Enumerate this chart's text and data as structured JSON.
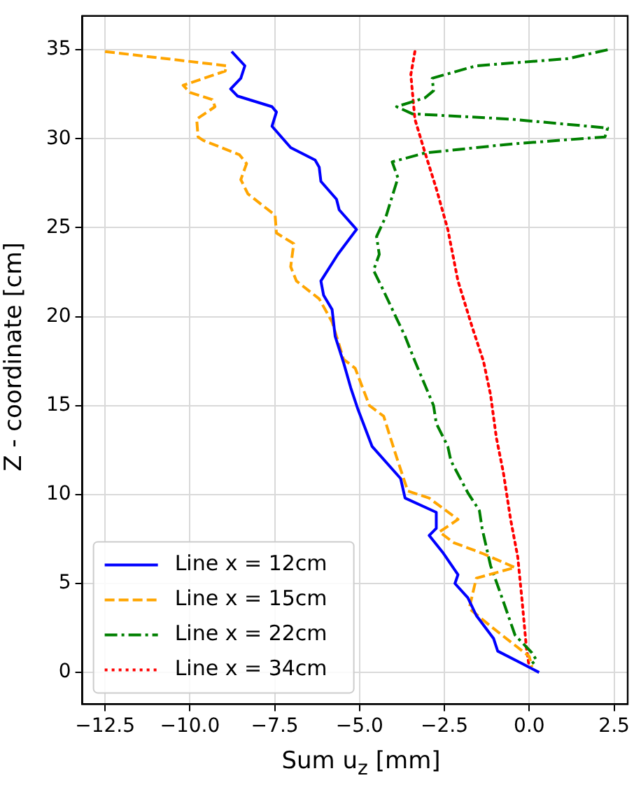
{
  "chart_data": {
    "type": "line",
    "xlabel": "Sum u$_{z}$ [mm]",
    "ylabel": "Z - coordinate [cm]",
    "xlim": [
      -13.17,
      2.9
    ],
    "ylim": [
      -1.78,
      36.9
    ],
    "xticks": [
      {
        "value": -12.5,
        "label": "−12.5"
      },
      {
        "value": -10,
        "label": "−10.0"
      },
      {
        "value": -7.5,
        "label": "−7.5"
      },
      {
        "value": -5,
        "label": "−5.0"
      },
      {
        "value": -2.5,
        "label": "−2.5"
      },
      {
        "value": 0,
        "label": "0.0"
      },
      {
        "value": 2.5,
        "label": "2.5"
      }
    ],
    "yticks": [
      0,
      5,
      10,
      15,
      20,
      25,
      30,
      35
    ],
    "grid": true,
    "legend": "bottom left",
    "marker": "none",
    "series": [
      {
        "name": "Line x = 12cm",
        "color": "#0000ff",
        "line_style": "solid",
        "x": [
          -8.77,
          -8.38,
          -8.5,
          -8.8,
          -8.6,
          -7.58,
          -7.45,
          -7.58,
          -7.03,
          -6.31,
          -6.19,
          -6.14,
          -5.68,
          -5.6,
          -5.09,
          -5.64,
          -6.14,
          -6.06,
          -5.81,
          -5.72,
          -5.47,
          -5.26,
          -5.05,
          -4.63,
          -3.79,
          -3.66,
          -2.74,
          -2.74,
          -2.95,
          -2.53,
          -2.1,
          -2.19,
          -1.81,
          -1.56,
          -1.05,
          -0.93,
          -0.21,
          0.29
        ],
        "values": [
          34.9,
          34.1,
          33.4,
          32.8,
          32.4,
          31.8,
          31.5,
          30.7,
          29.5,
          28.8,
          28.4,
          27.6,
          26.6,
          26.0,
          24.9,
          23.5,
          22.0,
          21.2,
          20.4,
          18.9,
          17.4,
          16.0,
          14.8,
          12.7,
          10.9,
          9.8,
          9.0,
          8.1,
          7.7,
          6.7,
          5.5,
          5.0,
          4.2,
          3.2,
          1.9,
          1.2,
          0.5,
          0.0
        ]
      },
      {
        "name": "Line x = 15cm",
        "color": "#ffa500",
        "line_style": "dashed",
        "x": [
          -12.5,
          -8.92,
          -8.96,
          -10.2,
          -10.0,
          -9.34,
          -9.26,
          -9.8,
          -9.76,
          -9.6,
          -8.54,
          -8.33,
          -8.5,
          -8.29,
          -7.49,
          -7.45,
          -6.94,
          -7.03,
          -6.86,
          -6.19,
          -5.81,
          -5.47,
          -5.13,
          -4.71,
          -4.29,
          -3.91,
          -3.58,
          -2.95,
          -2.1,
          -2.65,
          -2.23,
          -1.39,
          -0.42,
          -1.56,
          -1.77,
          -1.14,
          0.0,
          0.08
        ],
        "values": [
          34.9,
          34.1,
          33.8,
          33.0,
          32.6,
          32.2,
          31.8,
          31.1,
          30.1,
          29.9,
          29.1,
          28.6,
          27.7,
          26.9,
          25.7,
          24.7,
          24.1,
          22.8,
          22.0,
          21.0,
          19.7,
          17.6,
          17.1,
          15.0,
          14.4,
          12.1,
          10.2,
          9.8,
          8.6,
          7.9,
          7.3,
          6.7,
          5.9,
          5.3,
          3.6,
          2.6,
          0.9,
          0.3
        ]
      },
      {
        "name": "Line x = 22cm",
        "color": "#008000",
        "line_style": "dashdot",
        "x": [
          2.31,
          1.14,
          -1.56,
          -2.86,
          -2.82,
          -3.07,
          -3.91,
          -3.45,
          -0.55,
          2.31,
          2.23,
          -0.55,
          -3.07,
          -4.04,
          -3.87,
          -4.0,
          -4.21,
          -4.5,
          -4.42,
          -4.59,
          -4.33,
          -3.91,
          -3.66,
          -3.37,
          -2.82,
          -2.74,
          -2.4,
          -2.31,
          -1.81,
          -1.47,
          -1.39,
          -1.14,
          -0.84,
          -0.42,
          0.08,
          0.21,
          0.08
        ],
        "values": [
          35.0,
          34.5,
          34.1,
          33.4,
          32.7,
          32.3,
          31.8,
          31.4,
          31.1,
          30.6,
          30.1,
          29.7,
          29.2,
          28.7,
          27.8,
          27.0,
          25.7,
          24.5,
          23.5,
          22.6,
          21.6,
          19.9,
          18.9,
          17.5,
          15.0,
          14.0,
          12.7,
          11.9,
          10.1,
          9.1,
          8.1,
          6.0,
          4.4,
          2.1,
          1.1,
          0.7,
          0.5
        ]
      },
      {
        "name": "Line x = 34cm",
        "color": "#ff0000",
        "line_style": "dotted",
        "x": [
          -3.37,
          -3.49,
          -3.37,
          -3.07,
          -2.74,
          -2.4,
          -2.1,
          -1.68,
          -1.35,
          -1.14,
          -0.97,
          -0.76,
          -0.55,
          -0.34,
          -0.21,
          -0.08,
          0.0
        ],
        "values": [
          34.9,
          33.6,
          31.1,
          29.2,
          27.2,
          24.9,
          22.0,
          19.4,
          17.5,
          15.6,
          13.2,
          11.2,
          8.6,
          6.5,
          4.0,
          1.3,
          0.3
        ]
      }
    ]
  }
}
